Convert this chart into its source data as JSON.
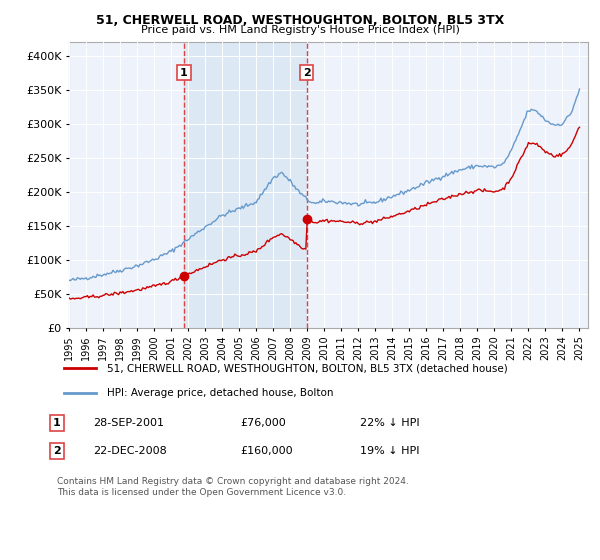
{
  "title": "51, CHERWELL ROAD, WESTHOUGHTON, BOLTON, BL5 3TX",
  "subtitle": "Price paid vs. HM Land Registry's House Price Index (HPI)",
  "legend_line1": "51, CHERWELL ROAD, WESTHOUGHTON, BOLTON, BL5 3TX (detached house)",
  "legend_line2": "HPI: Average price, detached house, Bolton",
  "transaction1_date": "28-SEP-2001",
  "transaction1_price": "£76,000",
  "transaction1_hpi": "22% ↓ HPI",
  "transaction1_year": 2001.75,
  "transaction2_date": "22-DEC-2008",
  "transaction2_price": "£160,000",
  "transaction2_hpi": "19% ↓ HPI",
  "transaction2_year": 2008.97,
  "footer": "Contains HM Land Registry data © Crown copyright and database right 2024.\nThis data is licensed under the Open Government Licence v3.0.",
  "house_color": "#cc0000",
  "hpi_color": "#6699cc",
  "vline_color": "#dd4444",
  "shade_color": "#dde8f5",
  "ylim": [
    0,
    420000
  ],
  "yticks": [
    0,
    50000,
    100000,
    150000,
    200000,
    250000,
    300000,
    350000,
    400000
  ],
  "background_color": "#ffffff",
  "plot_bg_color": "#eef2fa"
}
